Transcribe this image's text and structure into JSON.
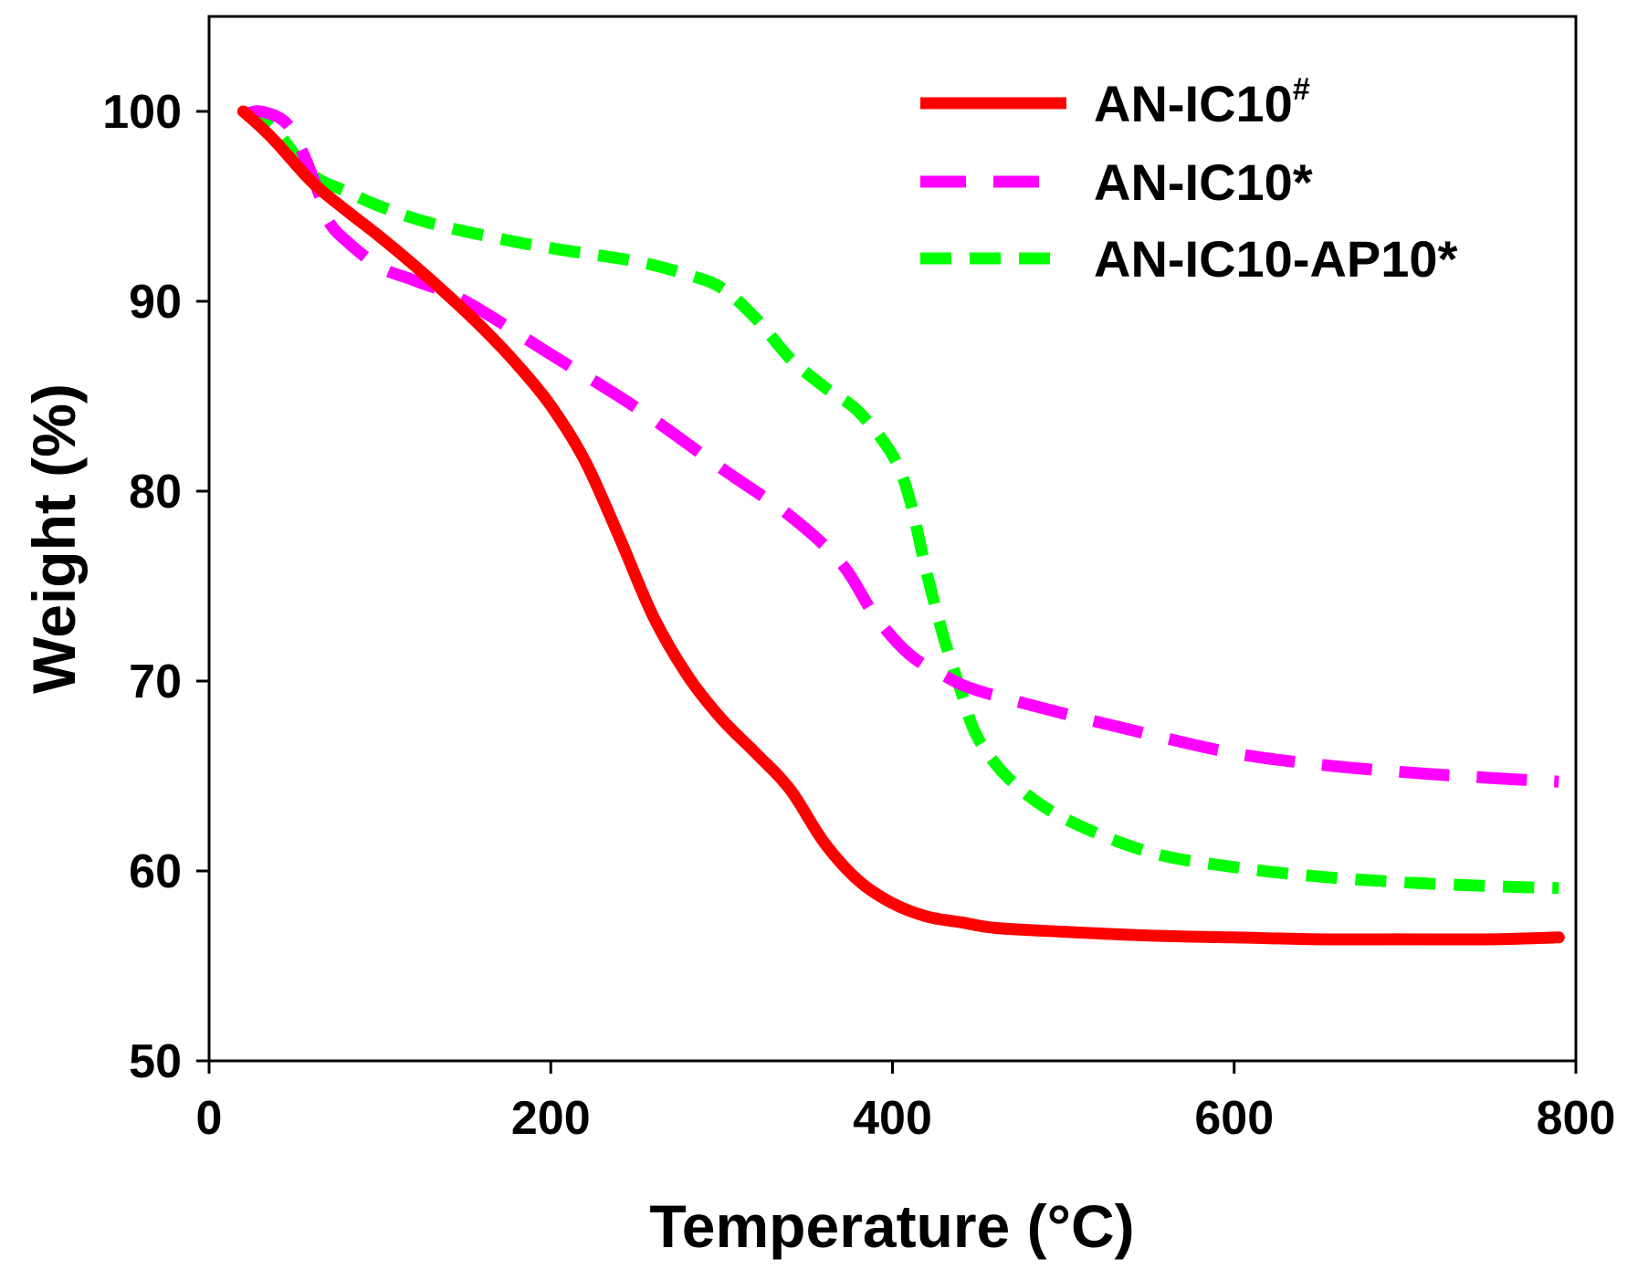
{
  "chart_data": {
    "type": "line",
    "title": "",
    "xlabel": "Temperature (°C)",
    "ylabel": "Weight (%)",
    "xlim": [
      0,
      800
    ],
    "ylim": [
      50,
      105
    ],
    "xticks": [
      0,
      200,
      400,
      600,
      800
    ],
    "yticks": [
      50,
      60,
      70,
      80,
      90,
      100
    ],
    "grid": false,
    "legend_position": "top-right",
    "series": [
      {
        "name": "AN-IC10",
        "name_sup": "#",
        "color": "#ff0000",
        "style": "solid",
        "x": [
          20,
          30,
          40,
          60,
          80,
          100,
          120,
          140,
          160,
          180,
          200,
          220,
          240,
          260,
          280,
          300,
          320,
          340,
          360,
          380,
          400,
          420,
          440,
          460,
          500,
          550,
          600,
          650,
          700,
          750,
          790
        ],
        "y": [
          100,
          99.2,
          98.3,
          96.3,
          94.8,
          93.4,
          91.9,
          90.3,
          88.6,
          86.7,
          84.5,
          81.6,
          77.6,
          73.4,
          70.3,
          68.0,
          66.2,
          64.3,
          61.5,
          59.5,
          58.3,
          57.6,
          57.3,
          57.0,
          56.8,
          56.6,
          56.5,
          56.4,
          56.4,
          56.4,
          56.5
        ]
      },
      {
        "name": "AN-IC10",
        "name_sup": "*",
        "color": "#ff00ff",
        "style": "longdash",
        "x": [
          20,
          30,
          45,
          55,
          65,
          70,
          80,
          100,
          120,
          150,
          200,
          250,
          300,
          340,
          370,
          390,
          410,
          430,
          450,
          500,
          550,
          600,
          650,
          700,
          750,
          790
        ],
        "y": [
          99.8,
          100,
          99.4,
          97.8,
          95.5,
          94.2,
          93.2,
          91.8,
          91.1,
          90.0,
          87.2,
          84.4,
          81.2,
          78.7,
          76.2,
          73.4,
          71.4,
          70.3,
          69.5,
          68.3,
          67.2,
          66.2,
          65.6,
          65.2,
          64.9,
          64.7
        ]
      },
      {
        "name": "AN-IC10-AP10",
        "name_sup": "*",
        "color": "#00ff00",
        "style": "dash",
        "x": [
          20,
          30,
          40,
          60,
          80,
          100,
          130,
          170,
          200,
          250,
          280,
          300,
          320,
          340,
          360,
          380,
          400,
          410,
          420,
          430,
          440,
          450,
          470,
          500,
          550,
          600,
          650,
          700,
          750,
          790
        ],
        "y": [
          100,
          99.6,
          98.9,
          96.7,
          95.8,
          95.0,
          94.1,
          93.3,
          92.8,
          92.1,
          91.4,
          90.7,
          89.1,
          87.0,
          85.5,
          84.2,
          81.9,
          79.6,
          75.7,
          72.3,
          69.5,
          67.0,
          64.7,
          62.8,
          61.0,
          60.2,
          59.7,
          59.4,
          59.2,
          59.1
        ]
      }
    ]
  }
}
